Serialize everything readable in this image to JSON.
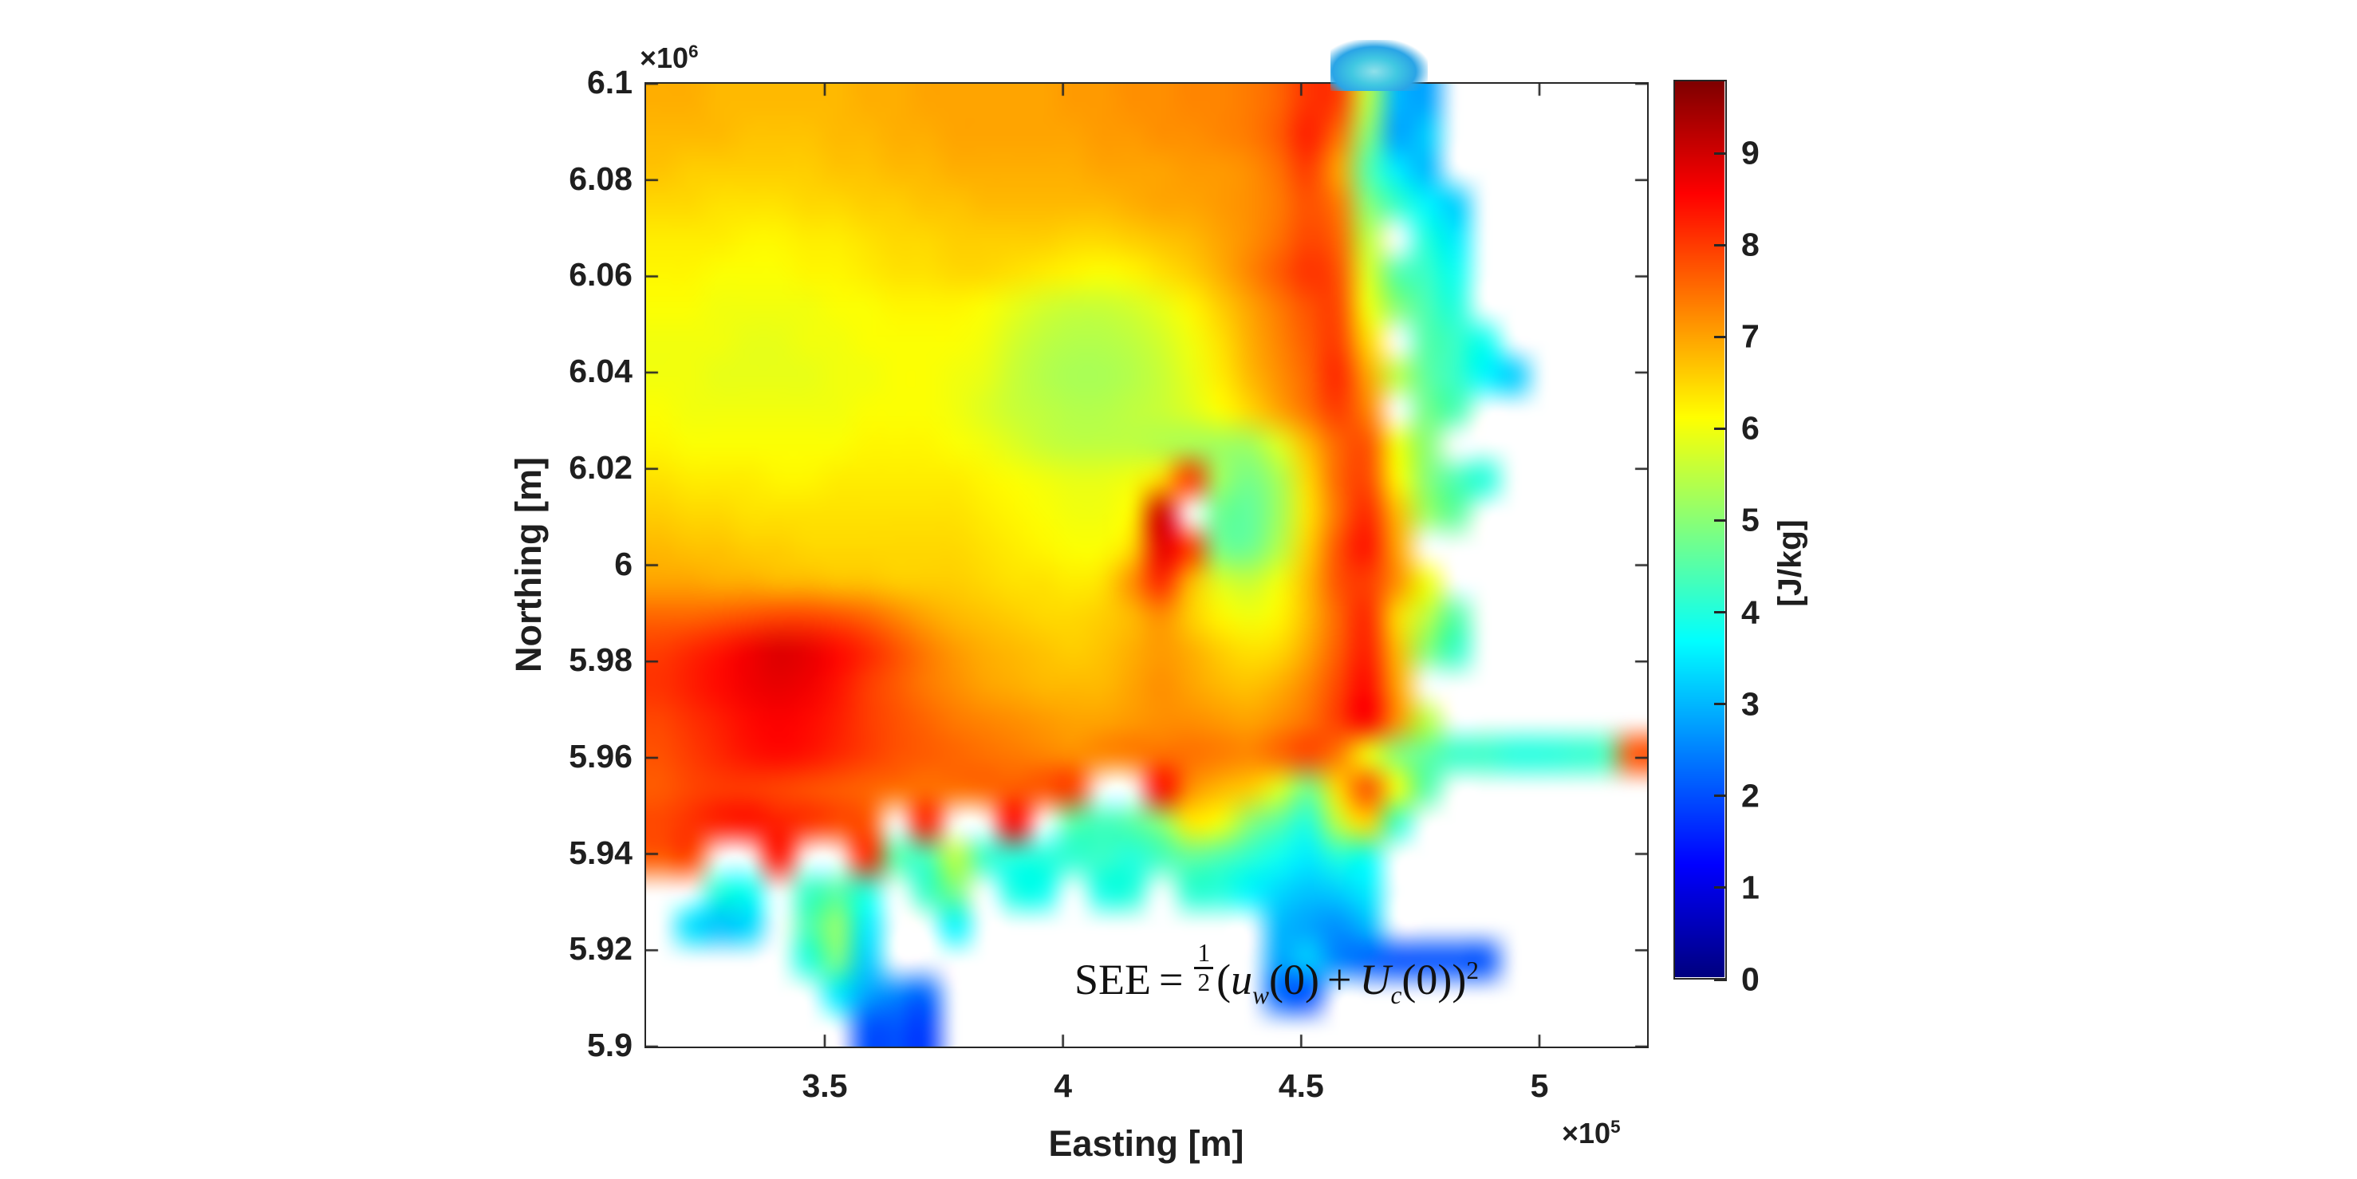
{
  "figure_type": "matlab-style heatmap figure",
  "colors": {
    "background": "#ffffff",
    "axis": "#262626",
    "text": "#1f1f1f",
    "no_data": "#ffffff"
  },
  "axes": {
    "xlabel": "Easting [m]",
    "ylabel": "Northing [m]",
    "x_exponent": {
      "prefix": "×10",
      "power": "5"
    },
    "y_exponent": {
      "prefix": "×10",
      "power": "6"
    },
    "xtick_labels": [
      "3.5",
      "4",
      "4.5",
      "5"
    ],
    "xtick_values": [
      3.5,
      4.0,
      4.5,
      5.0
    ],
    "xlim": [
      3.125,
      5.226
    ],
    "ytick_labels": [
      "6.1",
      "6.08",
      "6.06",
      "6.04",
      "6.02",
      "6",
      "5.98",
      "5.96",
      "5.94",
      "5.92",
      "5.9"
    ],
    "ytick_values": [
      6.1,
      6.08,
      6.06,
      6.04,
      6.02,
      6.0,
      5.98,
      5.96,
      5.94,
      5.92,
      5.9
    ],
    "ylim": [
      5.9,
      6.1
    ]
  },
  "colorbar": {
    "label": "[J/kg]",
    "tick_labels": [
      "0",
      "1",
      "2",
      "3",
      "4",
      "5",
      "6",
      "7",
      "8",
      "9"
    ],
    "tick_values": [
      0,
      1,
      2,
      3,
      4,
      5,
      6,
      7,
      8,
      9
    ],
    "vmin": 0,
    "vmax": 9.8,
    "colormap": "jet"
  },
  "equation": {
    "lhs": "SEE",
    "equals": "=",
    "frac_num": "1",
    "frac_den": "2",
    "open_paren": "(",
    "var1": "u",
    "var1_sub": "w",
    "arg1": "(0)",
    "plus": "+",
    "var2": "U",
    "var2_sub": "c",
    "arg2": "(0))",
    "exponent": "2"
  },
  "chart_data": {
    "type": "heatmap",
    "title": "",
    "xlabel": "Easting [m]",
    "ylabel": "Northing [m]",
    "value_label": "SEE [J/kg]",
    "annotation": "SEE = 1/2 (u_w(0) + U_c(0))^2",
    "xlim": [
      312500,
      522600
    ],
    "ylim": [
      5900000,
      6100000
    ],
    "xticks": [
      350000,
      400000,
      450000,
      500000
    ],
    "yticks": [
      5900000,
      5920000,
      5940000,
      5960000,
      5980000,
      6000000,
      6020000,
      6040000,
      6060000,
      6080000,
      6100000
    ],
    "vmin": 0,
    "vmax": 9.8,
    "colormap": "jet",
    "no_data": null,
    "grid_note": "Coarse sample of the field; row 0 = north (y=6.1e6), col 0 = west (x=3.125e5); null = land/no data (white). Coastal sea with deep-red open water (~8-9 J/kg) in the southwest, yellow-green (~5.5-6.5) offshore, cyan-blue tidal flats and estuaries (~2-4.5) along the south and east coasts.",
    "grid_values": [
      [
        6.9,
        6.9,
        6.8,
        6.8,
        6.8,
        6.8,
        6.8,
        6.9,
        6.9,
        7.0,
        7.0,
        7.0,
        7.0,
        7.0,
        7.1,
        7.1,
        7.2,
        7.2,
        7.3,
        7.3,
        7.4,
        7.6,
        8.1,
        8.0,
        5.5,
        3.0,
        2.8,
        null,
        null,
        null,
        null,
        null,
        null,
        null
      ],
      [
        6.8,
        6.8,
        6.8,
        6.7,
        6.7,
        6.7,
        6.8,
        6.8,
        6.9,
        6.9,
        7.0,
        7.0,
        7.0,
        7.0,
        7.0,
        7.1,
        7.1,
        7.2,
        7.2,
        7.3,
        7.4,
        7.7,
        8.3,
        7.5,
        5.0,
        2.8,
        3.2,
        null,
        null,
        null,
        null,
        null,
        null,
        null
      ],
      [
        6.7,
        6.6,
        6.6,
        6.6,
        6.6,
        6.6,
        6.7,
        6.7,
        6.8,
        6.8,
        6.9,
        6.9,
        6.9,
        6.9,
        6.9,
        7.0,
        7.0,
        7.0,
        7.1,
        7.1,
        7.2,
        7.5,
        8.0,
        7.0,
        4.5,
        3.5,
        3.0,
        null,
        null,
        null,
        null,
        null,
        null,
        null
      ],
      [
        6.5,
        6.5,
        6.4,
        6.4,
        6.4,
        6.5,
        6.5,
        6.6,
        6.6,
        6.7,
        6.7,
        6.8,
        6.8,
        6.8,
        6.8,
        6.8,
        6.9,
        7.0,
        7.0,
        7.1,
        7.2,
        7.4,
        7.8,
        7.4,
        5.0,
        4.2,
        3.6,
        3.2,
        null,
        null,
        null,
        null,
        null,
        null
      ],
      [
        6.3,
        6.3,
        6.3,
        6.2,
        6.2,
        6.3,
        6.3,
        6.4,
        6.5,
        6.5,
        6.6,
        6.6,
        6.6,
        6.6,
        6.5,
        6.5,
        6.6,
        6.7,
        6.8,
        7.0,
        7.2,
        7.5,
        7.9,
        7.6,
        5.5,
        null,
        4.0,
        3.5,
        null,
        null,
        null,
        null,
        null,
        null
      ],
      [
        6.2,
        6.2,
        6.1,
        6.1,
        6.1,
        6.2,
        6.2,
        6.3,
        6.4,
        6.4,
        6.5,
        6.5,
        6.4,
        6.3,
        6.2,
        6.1,
        6.2,
        6.4,
        6.6,
        6.9,
        7.3,
        7.7,
        8.1,
        7.8,
        5.8,
        4.5,
        4.2,
        3.8,
        null,
        null,
        null,
        null,
        null,
        null
      ],
      [
        6.1,
        6.1,
        6.0,
        6.0,
        6.0,
        6.0,
        6.1,
        6.1,
        6.2,
        6.2,
        6.2,
        6.1,
        5.9,
        5.7,
        5.6,
        5.6,
        5.7,
        5.9,
        6.2,
        6.6,
        7.0,
        7.4,
        7.8,
        7.9,
        6.0,
        5.0,
        4.4,
        4.0,
        null,
        null,
        null,
        null,
        null,
        null
      ],
      [
        6.0,
        6.0,
        6.0,
        5.9,
        5.9,
        6.0,
        6.0,
        6.1,
        6.1,
        6.1,
        6.1,
        6.0,
        5.7,
        5.5,
        5.4,
        5.4,
        5.5,
        5.7,
        6.0,
        6.4,
        6.9,
        7.3,
        7.7,
        8.0,
        6.5,
        null,
        4.5,
        4.2,
        3.8,
        null,
        null,
        null,
        null,
        null
      ],
      [
        6.0,
        6.0,
        5.9,
        5.9,
        5.9,
        5.9,
        6.0,
        6.0,
        6.1,
        6.1,
        6.0,
        5.9,
        5.6,
        5.4,
        5.3,
        5.3,
        5.4,
        5.6,
        5.9,
        6.3,
        6.8,
        7.2,
        7.6,
        8.2,
        7.0,
        5.5,
        4.6,
        4.2,
        3.6,
        3.2,
        null,
        null,
        null,
        null
      ],
      [
        6.1,
        6.0,
        6.0,
        6.0,
        6.0,
        6.0,
        6.0,
        6.1,
        6.1,
        6.1,
        6.0,
        5.8,
        5.6,
        5.5,
        5.4,
        5.4,
        5.5,
        5.6,
        5.8,
        6.1,
        6.5,
        7.0,
        7.5,
        8.0,
        7.3,
        null,
        4.8,
        4.4,
        null,
        null,
        null,
        null,
        null,
        null
      ],
      [
        6.2,
        6.1,
        6.1,
        6.1,
        6.1,
        6.1,
        6.1,
        6.2,
        6.2,
        6.2,
        6.1,
        6.0,
        5.8,
        5.6,
        5.5,
        5.5,
        5.5,
        5.4,
        5.3,
        5.2,
        5.2,
        5.8,
        6.8,
        7.6,
        7.8,
        6.0,
        5.0,
        null,
        null,
        null,
        null,
        null,
        null,
        null
      ],
      [
        6.4,
        6.3,
        6.3,
        6.3,
        6.2,
        6.2,
        6.3,
        6.3,
        6.3,
        6.3,
        6.3,
        6.2,
        6.1,
        6.0,
        5.9,
        5.9,
        6.0,
        6.5,
        8.0,
        5.2,
        4.8,
        5.3,
        6.5,
        7.6,
        7.9,
        6.2,
        5.0,
        4.4,
        4.0,
        null,
        null,
        null,
        null,
        null
      ],
      [
        6.6,
        6.5,
        6.5,
        6.4,
        6.4,
        6.4,
        6.4,
        6.4,
        6.4,
        6.4,
        6.4,
        6.3,
        6.2,
        6.1,
        6.0,
        6.0,
        6.2,
        9.0,
        null,
        4.7,
        4.6,
        5.2,
        6.4,
        7.5,
        8.2,
        6.8,
        5.2,
        4.6,
        null,
        null,
        null,
        null,
        null,
        null
      ],
      [
        6.8,
        6.7,
        6.7,
        6.6,
        6.6,
        6.5,
        6.5,
        6.5,
        6.5,
        6.5,
        6.5,
        6.4,
        6.3,
        6.2,
        6.1,
        6.1,
        6.5,
        8.8,
        8.0,
        4.8,
        4.7,
        5.4,
        6.6,
        7.8,
        8.4,
        7.0,
        null,
        null,
        null,
        null,
        null,
        null,
        null,
        null
      ],
      [
        7.0,
        7.0,
        6.9,
        6.9,
        6.8,
        6.8,
        6.7,
        6.7,
        6.6,
        6.6,
        6.6,
        6.5,
        6.4,
        6.4,
        6.3,
        6.4,
        7.2,
        8.2,
        6.8,
        5.8,
        5.6,
        6.0,
        6.8,
        7.8,
        8.0,
        7.2,
        6.0,
        null,
        null,
        null,
        null,
        null,
        null,
        null
      ],
      [
        7.6,
        7.6,
        7.7,
        7.8,
        7.9,
        7.9,
        7.8,
        7.6,
        7.3,
        7.0,
        6.8,
        6.7,
        6.6,
        6.5,
        6.5,
        6.6,
        6.8,
        7.2,
        6.6,
        6.2,
        6.0,
        6.2,
        6.8,
        7.6,
        8.2,
        6.5,
        5.5,
        4.5,
        null,
        null,
        null,
        null,
        null,
        null
      ],
      [
        8.0,
        8.2,
        8.4,
        8.7,
        8.9,
        8.8,
        8.5,
        8.2,
        7.8,
        7.4,
        7.1,
        6.9,
        6.8,
        6.7,
        6.6,
        6.7,
        6.9,
        7.1,
        6.9,
        6.6,
        6.4,
        6.5,
        7.0,
        7.7,
        8.3,
        6.8,
        5.0,
        4.2,
        null,
        null,
        null,
        null,
        null,
        null
      ],
      [
        8.1,
        8.3,
        8.5,
        8.7,
        8.8,
        8.7,
        8.4,
        8.0,
        7.7,
        7.4,
        7.2,
        7.0,
        6.9,
        6.8,
        6.8,
        6.8,
        7.0,
        7.2,
        7.0,
        6.8,
        6.7,
        6.9,
        7.3,
        7.9,
        8.5,
        7.0,
        null,
        null,
        null,
        null,
        null,
        null,
        null,
        null
      ],
      [
        7.9,
        8.1,
        8.3,
        8.5,
        8.6,
        8.5,
        8.3,
        8.0,
        7.8,
        7.6,
        7.4,
        7.3,
        7.2,
        7.1,
        7.0,
        7.0,
        7.1,
        7.2,
        7.2,
        7.1,
        7.0,
        7.2,
        7.5,
        8.0,
        8.6,
        7.2,
        5.5,
        null,
        null,
        null,
        null,
        null,
        null,
        null
      ],
      [
        7.8,
        8.0,
        8.2,
        8.4,
        8.5,
        8.4,
        8.2,
        8.0,
        7.8,
        7.7,
        7.6,
        7.5,
        7.4,
        7.3,
        7.2,
        7.3,
        7.4,
        7.5,
        7.5,
        7.4,
        7.3,
        7.6,
        7.9,
        7.4,
        6.0,
        5.0,
        4.6,
        4.2,
        4.2,
        4.0,
        4.0,
        4.1,
        4.3,
        7.8
      ],
      [
        7.7,
        7.9,
        8.0,
        8.0,
        7.9,
        7.8,
        7.7,
        7.6,
        7.5,
        7.5,
        7.5,
        7.6,
        7.7,
        7.8,
        8.0,
        null,
        null,
        8.5,
        7.2,
        6.8,
        6.6,
        5.8,
        4.8,
        6.5,
        7.8,
        6.0,
        4.5,
        null,
        null,
        null,
        null,
        null,
        null,
        null
      ],
      [
        7.9,
        8.1,
        8.3,
        8.4,
        8.3,
        8.1,
        7.9,
        7.8,
        null,
        8.3,
        null,
        null,
        8.6,
        null,
        4.5,
        4.3,
        4.5,
        5.0,
        6.3,
        6.0,
        5.0,
        4.5,
        4.0,
        5.5,
        6.5,
        4.2,
        null,
        null,
        null,
        null,
        null,
        null,
        null,
        null
      ],
      [
        7.7,
        7.9,
        null,
        null,
        8.4,
        null,
        null,
        8.2,
        4.5,
        4.3,
        5.5,
        4.2,
        4.0,
        4.0,
        4.1,
        4.2,
        4.0,
        4.3,
        4.6,
        4.4,
        4.1,
        3.8,
        3.5,
        4.0,
        3.8,
        null,
        null,
        null,
        null,
        null,
        null,
        null,
        null,
        null
      ],
      [
        null,
        null,
        4.0,
        3.8,
        null,
        4.2,
        4.5,
        4.0,
        null,
        4.2,
        4.8,
        null,
        3.9,
        3.8,
        null,
        3.9,
        4.0,
        null,
        4.1,
        4.0,
        3.6,
        3.3,
        3.1,
        3.2,
        3.5,
        null,
        null,
        null,
        null,
        null,
        null,
        null,
        null,
        null
      ],
      [
        null,
        3.4,
        3.1,
        3.3,
        null,
        4.4,
        5.1,
        3.5,
        null,
        null,
        3.6,
        null,
        null,
        null,
        null,
        null,
        null,
        null,
        null,
        null,
        null,
        3.0,
        2.8,
        2.6,
        3.0,
        null,
        null,
        null,
        null,
        null,
        null,
        null,
        null,
        null
      ],
      [
        null,
        null,
        null,
        null,
        null,
        4.0,
        4.8,
        3.2,
        null,
        null,
        null,
        null,
        null,
        null,
        null,
        null,
        null,
        null,
        null,
        null,
        null,
        2.8,
        3.2,
        2.5,
        2.2,
        2.0,
        2.0,
        2.0,
        2.0,
        null,
        null,
        null,
        null,
        null
      ],
      [
        null,
        null,
        null,
        null,
        null,
        null,
        3.5,
        2.8,
        2.5,
        2.2,
        null,
        null,
        null,
        null,
        null,
        null,
        null,
        null,
        null,
        null,
        null,
        2.2,
        2.0,
        null,
        null,
        null,
        null,
        null,
        null,
        null,
        null,
        null,
        null,
        null
      ],
      [
        null,
        null,
        null,
        null,
        null,
        null,
        null,
        2.0,
        2.0,
        1.8,
        null,
        null,
        null,
        null,
        null,
        null,
        null,
        null,
        null,
        null,
        null,
        null,
        null,
        null,
        null,
        null,
        null,
        null,
        null,
        null,
        null,
        null,
        null,
        null
      ]
    ]
  }
}
